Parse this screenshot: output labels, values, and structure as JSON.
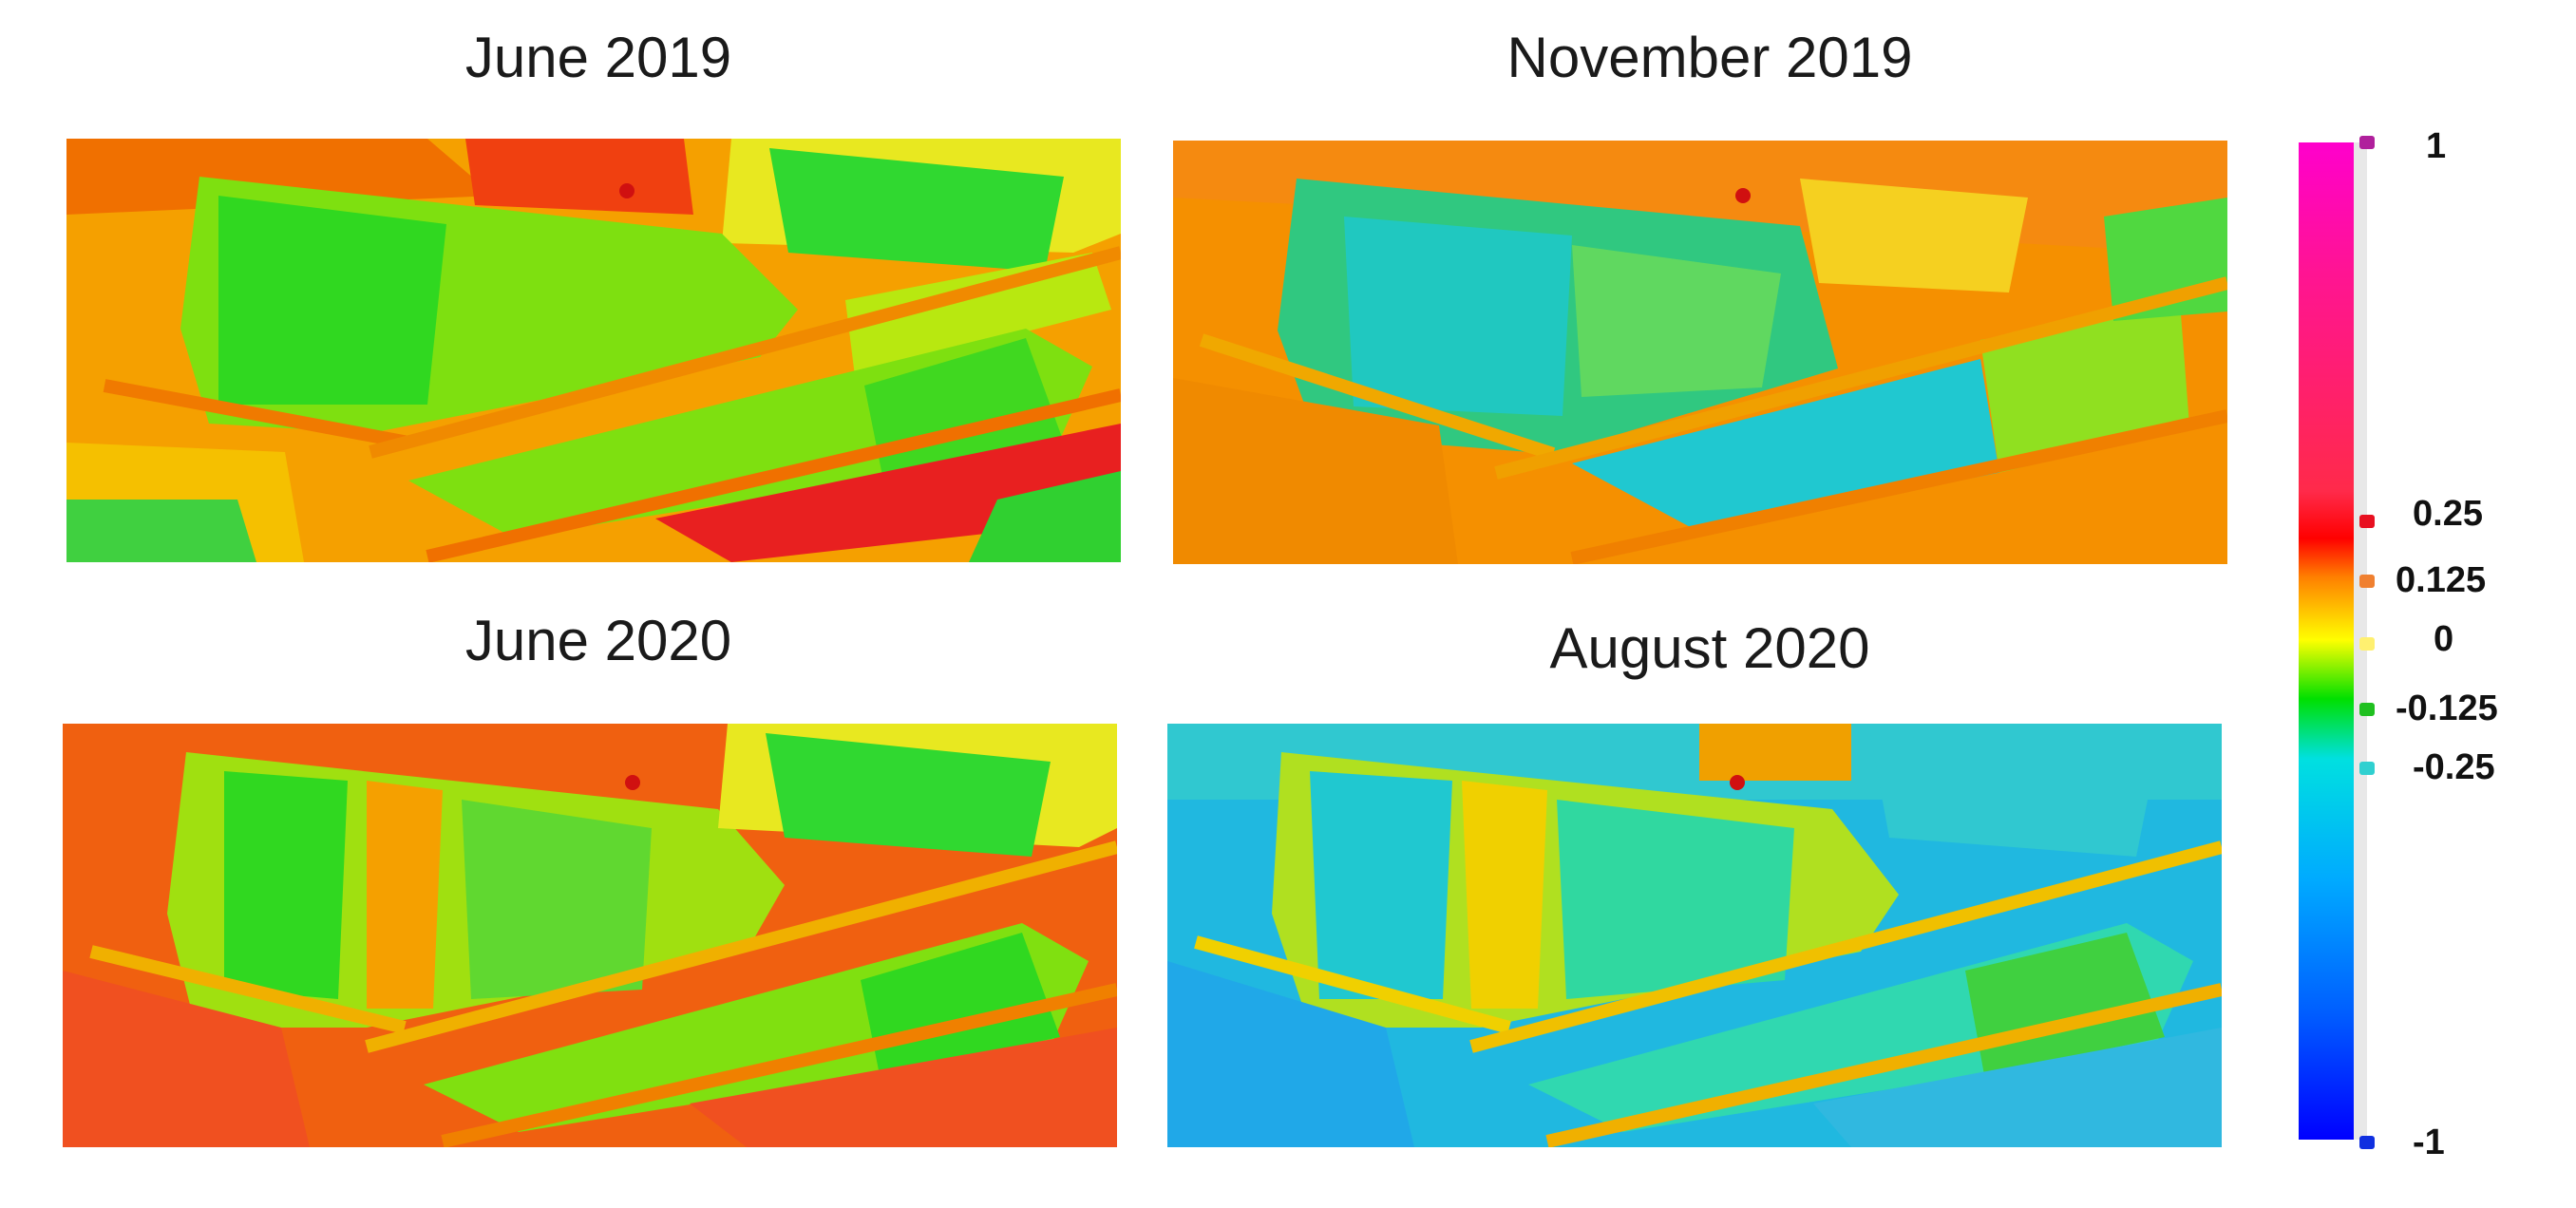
{
  "panels": [
    {
      "title": "June 2019"
    },
    {
      "title": "November 2019"
    },
    {
      "title": "June 2020"
    },
    {
      "title": "August 2020"
    }
  ],
  "colorbar": {
    "ticks": [
      {
        "value": 1,
        "label": "1",
        "color": "#b0209c"
      },
      {
        "value": 0.25,
        "label": "0.25",
        "color": "#e81020"
      },
      {
        "value": 0.125,
        "label": "0.125",
        "color": "#f08030"
      },
      {
        "value": 0,
        "label": "0",
        "color": "#fff070"
      },
      {
        "value": -0.125,
        "label": "-0.125",
        "color": "#20c020"
      },
      {
        "value": -0.25,
        "label": "-0.25",
        "color": "#30d0d0"
      },
      {
        "value": -1,
        "label": "-1",
        "color": "#1030e0"
      }
    ],
    "colors": [
      "#ff00cc",
      "#ff0000",
      "#ff8000",
      "#ffff00",
      "#00e000",
      "#00e0e0",
      "#0000ff"
    ]
  }
}
